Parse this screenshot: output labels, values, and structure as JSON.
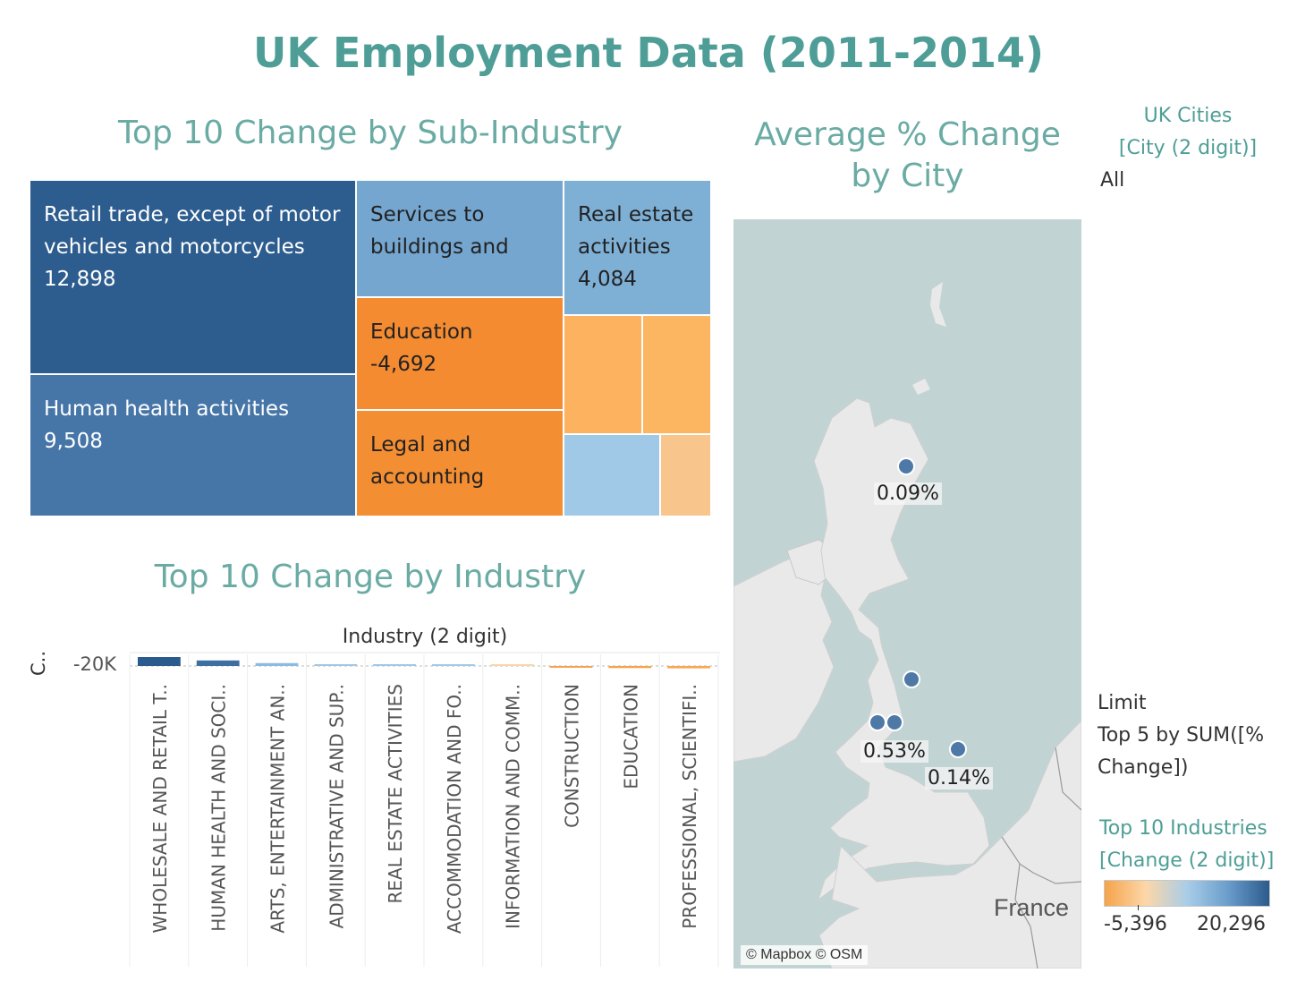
{
  "title": "UK Employment Data (2011-2014)",
  "treemap": {
    "title": "Top 10 Change by Sub-Industry",
    "tiles": [
      {
        "lines": [
          "Retail trade, except of motor",
          "vehicles and motorcycles",
          "12,898"
        ],
        "color": "#2d5d8e"
      },
      {
        "lines": [
          "Human health activities",
          "9,508"
        ],
        "color": "#4676a8"
      },
      {
        "lines": [
          "Services to",
          "buildings and"
        ],
        "color": "#74a6cf"
      },
      {
        "lines": [
          "Education",
          "-4,692"
        ],
        "color": "#f58b31"
      },
      {
        "lines": [
          "Legal and",
          "accounting"
        ],
        "color": "#f48e33"
      },
      {
        "lines": [
          "Real estate",
          "activities",
          "4,084"
        ],
        "color": "#7eb0d6"
      },
      {
        "lines": [],
        "color": "#fcb25f"
      },
      {
        "lines": [],
        "color": "#fcb561"
      },
      {
        "lines": [],
        "color": "#9fc9e6"
      },
      {
        "lines": [],
        "color": "#f8c68c"
      }
    ]
  },
  "map": {
    "title_line1": "Average % Change",
    "title_line2": "by City",
    "attribution": "© Mapbox © OSM",
    "country_label": "France",
    "point_color": "#4e79a7",
    "cities": [
      {
        "label": "0.09%"
      },
      {
        "label": ""
      },
      {
        "label": "0.53%"
      },
      {
        "label": ""
      },
      {
        "label": "0.14%"
      }
    ]
  },
  "filters": {
    "cities_title_line1": "UK Cities",
    "cities_title_line2": "[City (2 digit)]",
    "cities_value": "All",
    "limit_line1": "Limit",
    "limit_line2": "Top 5 by SUM([%",
    "limit_line3": "Change])",
    "legend_title_line1": "Top 10 Industries",
    "legend_title_line2": "[Change (2 digit)]",
    "legend_min": "-5,396",
    "legend_max": "20,296",
    "legend_colors": [
      "#f5a34a",
      "#fcd7a8",
      "#a9cde8",
      "#6a9dcb",
      "#2a5b8c"
    ]
  },
  "chart_data": {
    "type": "bar",
    "title": "Top 10 Change by Industry",
    "column_header": "Industry (2 digit)",
    "ylabel": "C..",
    "y_tick_label": "-20K",
    "categories": [
      "WHOLESALE AND RETAIL T..",
      "HUMAN HEALTH AND SOCI..",
      "ARTS, ENTERTAINMENT AN..",
      "ADMINISTRATIVE AND SUP..",
      "REAL ESTATE ACTIVITIES",
      "ACCOMMODATION AND FO..",
      "INFORMATION AND COMM..",
      "CONSTRUCTION",
      "EDUCATION",
      "PROFESSIONAL, SCIENTIFI.."
    ],
    "values": [
      20296,
      12500,
      6500,
      4000,
      3800,
      3700,
      1500,
      -3000,
      -4700,
      -5396
    ],
    "colors": [
      "#2a5b8c",
      "#3e6fa3",
      "#8bbbe0",
      "#9fc8e6",
      "#9fc8e6",
      "#a2c9e6",
      "#fbd5aa",
      "#f7a24b",
      "#f5a34a",
      "#f7a852"
    ]
  }
}
